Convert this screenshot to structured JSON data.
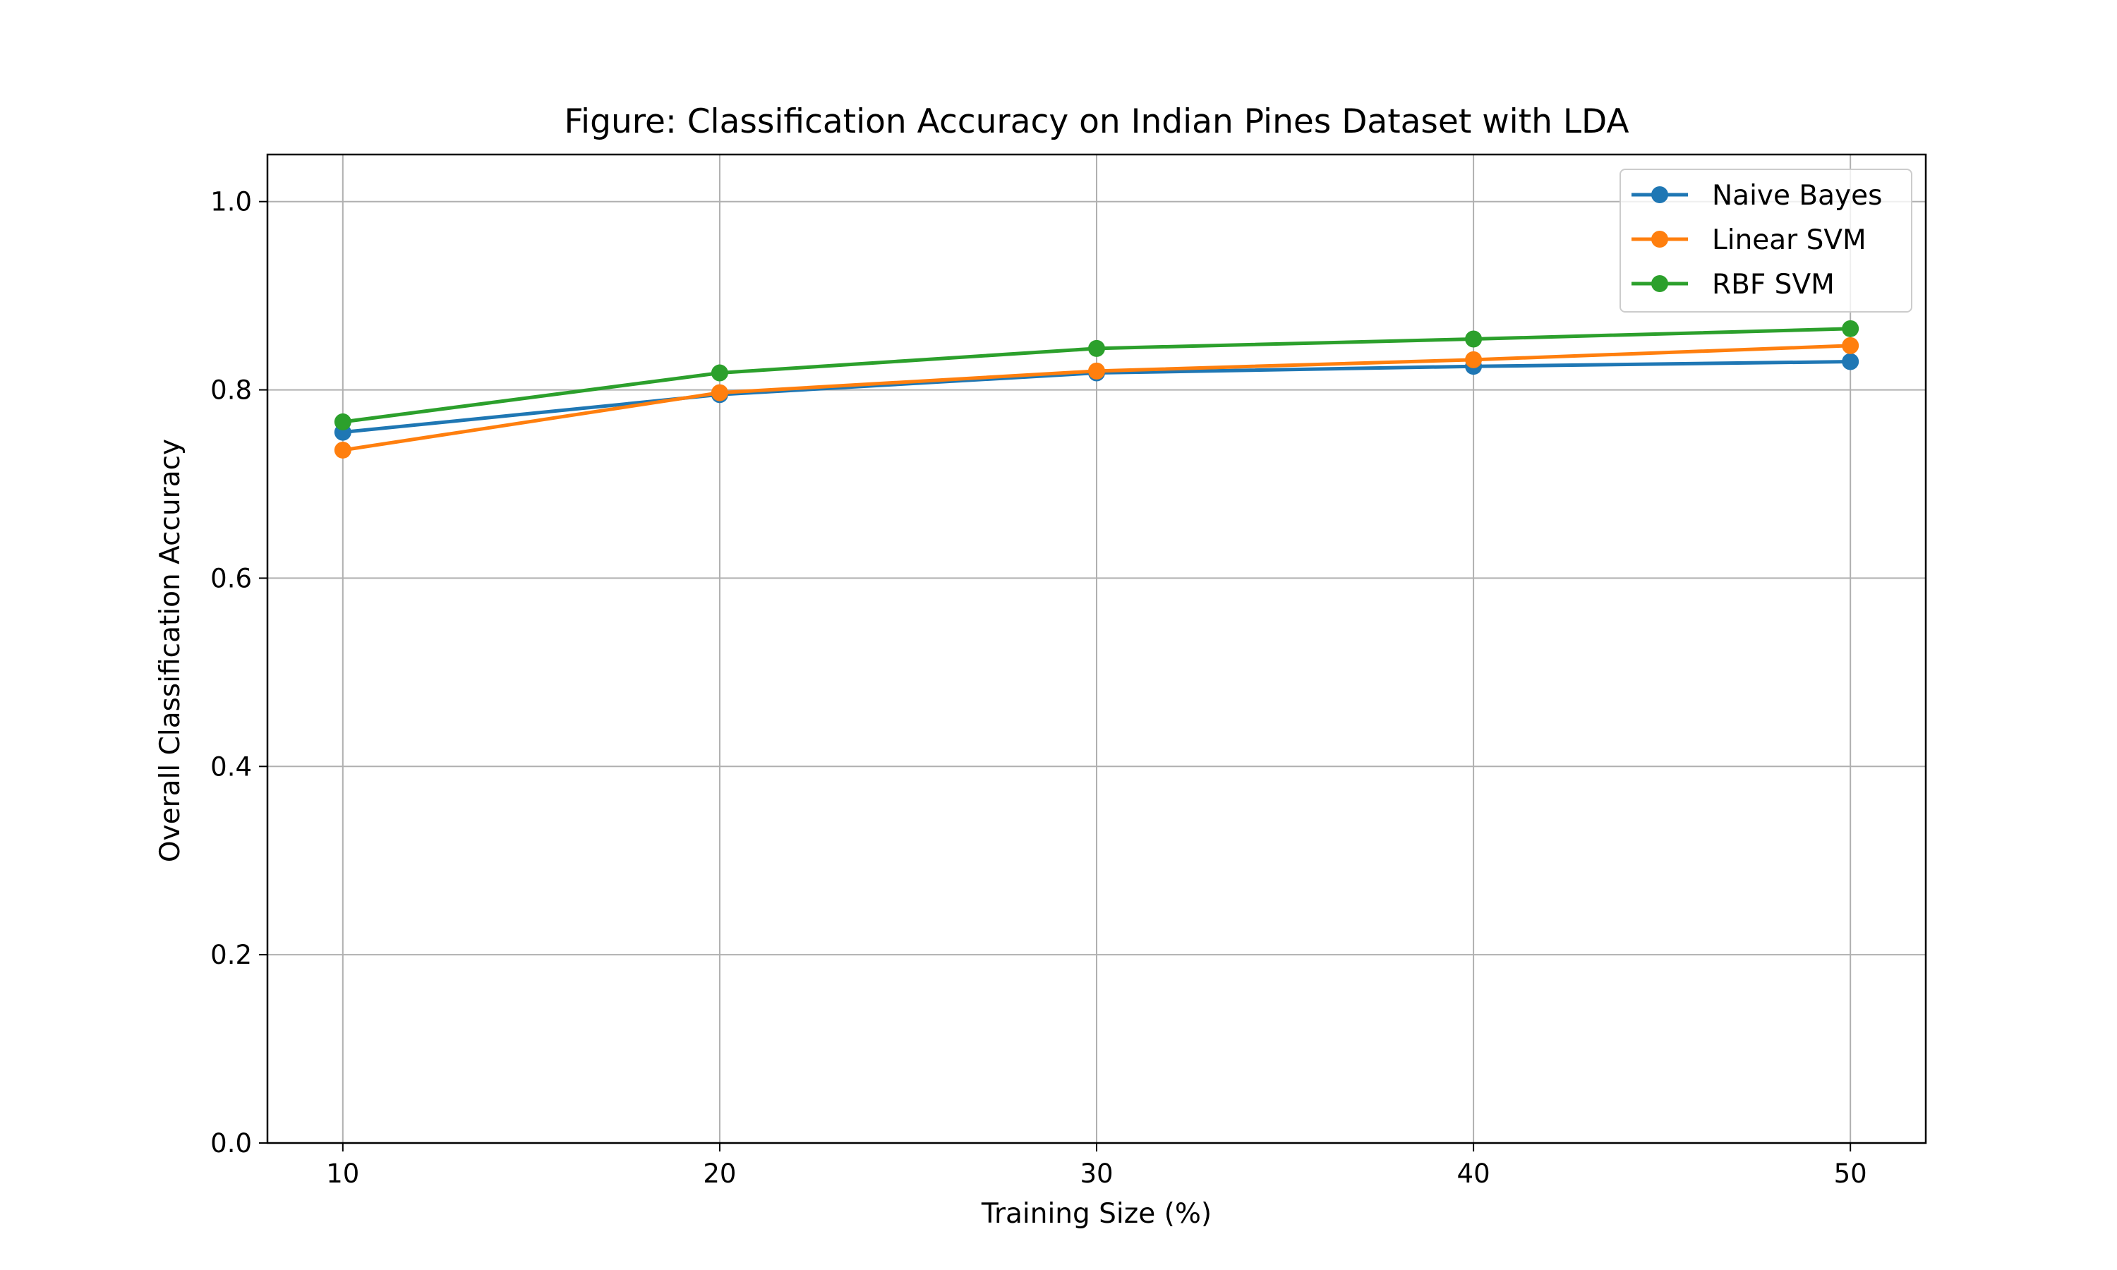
{
  "chart_data": {
    "type": "line",
    "title": "Figure: Classification Accuracy on Indian Pines Dataset with LDA",
    "xlabel": "Training Size (%)",
    "ylabel": "Overall Classification Accuracy",
    "x": [
      10,
      20,
      30,
      40,
      50
    ],
    "xlim": [
      8,
      52
    ],
    "ylim": [
      0.0,
      1.05
    ],
    "xticks": [
      "10",
      "20",
      "30",
      "40",
      "50"
    ],
    "yticks": [
      "0.0",
      "0.2",
      "0.4",
      "0.6",
      "0.8",
      "1.0"
    ],
    "grid": true,
    "legend_position": "top-right",
    "series": [
      {
        "name": "Naive Bayes",
        "color": "#1f77b4",
        "marker": "circle",
        "values": [
          0.755,
          0.795,
          0.818,
          0.825,
          0.83
        ]
      },
      {
        "name": "Linear SVM",
        "color": "#ff7f0e",
        "marker": "circle",
        "values": [
          0.736,
          0.797,
          0.82,
          0.832,
          0.847
        ]
      },
      {
        "name": "RBF SVM",
        "color": "#2ca02c",
        "marker": "circle",
        "values": [
          0.766,
          0.818,
          0.844,
          0.854,
          0.865
        ]
      }
    ]
  }
}
